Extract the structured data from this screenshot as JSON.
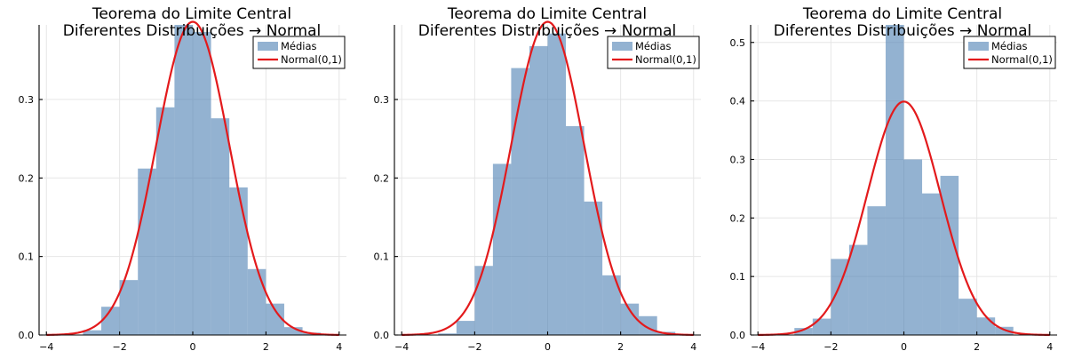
{
  "chart_data": [
    {
      "type": "bar",
      "title": [
        "Teorema do Limite Central",
        "Diferentes Distribuições → Normal"
      ],
      "xlabel": "",
      "ylabel": "",
      "xlim": [
        -4.2,
        4.2
      ],
      "ylim": [
        0,
        0.395
      ],
      "x_ticks": [
        -4,
        -2,
        0,
        2,
        4
      ],
      "x_tick_labels": [
        "−4",
        "−2",
        "0",
        "2",
        "4"
      ],
      "y_ticks": [
        0.0,
        0.1,
        0.2,
        0.3
      ],
      "y_tick_labels": [
        "0.0",
        "0.1",
        "0.2",
        "0.3"
      ],
      "grid": true,
      "legend_position": "top-right",
      "legend": [
        "Médias",
        "Normal(0,1)"
      ],
      "bins": [
        {
          "x0": -3.0,
          "x1": -2.5,
          "y": 0.006
        },
        {
          "x0": -2.5,
          "x1": -2.0,
          "y": 0.036
        },
        {
          "x0": -2.0,
          "x1": -1.5,
          "y": 0.07
        },
        {
          "x0": -1.5,
          "x1": -1.0,
          "y": 0.212
        },
        {
          "x0": -1.0,
          "x1": -0.5,
          "y": 0.29
        },
        {
          "x0": -0.5,
          "x1": 0.0,
          "y": 0.398
        },
        {
          "x0": 0.0,
          "x1": 0.5,
          "y": 0.386
        },
        {
          "x0": 0.5,
          "x1": 1.0,
          "y": 0.276
        },
        {
          "x0": 1.0,
          "x1": 1.5,
          "y": 0.188
        },
        {
          "x0": 1.5,
          "x1": 2.0,
          "y": 0.084
        },
        {
          "x0": 2.0,
          "x1": 2.5,
          "y": 0.04
        },
        {
          "x0": 2.5,
          "x1": 3.0,
          "y": 0.01
        },
        {
          "x0": 3.0,
          "x1": 3.5,
          "y": 0.003
        }
      ],
      "series": [
        {
          "name": "Médias",
          "kind": "histogram",
          "color": "#4b7fb3"
        },
        {
          "name": "Normal(0,1)",
          "kind": "line",
          "color": "#e31a1c",
          "mean": 0,
          "sd": 1
        }
      ]
    },
    {
      "type": "bar",
      "title": [
        "Teorema do Limite Central",
        "Diferentes Distribuições → Normal"
      ],
      "xlabel": "",
      "ylabel": "",
      "xlim": [
        -4.2,
        4.2
      ],
      "ylim": [
        0,
        0.395
      ],
      "x_ticks": [
        -4,
        -2,
        0,
        2,
        4
      ],
      "x_tick_labels": [
        "−4",
        "−2",
        "0",
        "2",
        "4"
      ],
      "y_ticks": [
        0.0,
        0.1,
        0.2,
        0.3
      ],
      "y_tick_labels": [
        "0.0",
        "0.1",
        "0.2",
        "0.3"
      ],
      "grid": true,
      "legend_position": "top-right",
      "legend": [
        "Médias",
        "Normal(0,1)"
      ],
      "bins": [
        {
          "x0": -3.0,
          "x1": -2.5,
          "y": 0.002
        },
        {
          "x0": -2.5,
          "x1": -2.0,
          "y": 0.018
        },
        {
          "x0": -2.0,
          "x1": -1.5,
          "y": 0.088
        },
        {
          "x0": -1.5,
          "x1": -1.0,
          "y": 0.218
        },
        {
          "x0": -1.0,
          "x1": -0.5,
          "y": 0.34
        },
        {
          "x0": -0.5,
          "x1": 0.0,
          "y": 0.368
        },
        {
          "x0": 0.0,
          "x1": 0.5,
          "y": 0.384
        },
        {
          "x0": 0.5,
          "x1": 1.0,
          "y": 0.266
        },
        {
          "x0": 1.0,
          "x1": 1.5,
          "y": 0.17
        },
        {
          "x0": 1.5,
          "x1": 2.0,
          "y": 0.076
        },
        {
          "x0": 2.0,
          "x1": 2.5,
          "y": 0.04
        },
        {
          "x0": 2.5,
          "x1": 3.0,
          "y": 0.024
        },
        {
          "x0": 3.0,
          "x1": 3.5,
          "y": 0.004
        }
      ],
      "series": [
        {
          "name": "Médias",
          "kind": "histogram",
          "color": "#4b7fb3"
        },
        {
          "name": "Normal(0,1)",
          "kind": "line",
          "color": "#e31a1c",
          "mean": 0,
          "sd": 1
        }
      ]
    },
    {
      "type": "bar",
      "title": [
        "Teorema do Limite Central",
        "Diferentes Distribuições → Normal"
      ],
      "xlabel": "",
      "ylabel": "",
      "xlim": [
        -4.2,
        4.2
      ],
      "ylim": [
        0,
        0.53
      ],
      "x_ticks": [
        -4,
        -2,
        0,
        2,
        4
      ],
      "x_tick_labels": [
        "−4",
        "−2",
        "0",
        "2",
        "4"
      ],
      "y_ticks": [
        0.0,
        0.1,
        0.2,
        0.3,
        0.4,
        0.5
      ],
      "y_tick_labels": [
        "0.0",
        "0.1",
        "0.2",
        "0.3",
        "0.4",
        "0.5"
      ],
      "grid": true,
      "legend_position": "top-right",
      "legend": [
        "Médias",
        "Normal(0,1)"
      ],
      "bins": [
        {
          "x0": -3.0,
          "x1": -2.5,
          "y": 0.012
        },
        {
          "x0": -2.5,
          "x1": -2.0,
          "y": 0.028
        },
        {
          "x0": -2.0,
          "x1": -1.5,
          "y": 0.13
        },
        {
          "x0": -1.5,
          "x1": -1.0,
          "y": 0.154
        },
        {
          "x0": -1.0,
          "x1": -0.5,
          "y": 0.22
        },
        {
          "x0": -0.5,
          "x1": 0.0,
          "y": 0.53
        },
        {
          "x0": 0.0,
          "x1": 0.5,
          "y": 0.3
        },
        {
          "x0": 0.5,
          "x1": 1.0,
          "y": 0.242
        },
        {
          "x0": 1.0,
          "x1": 1.5,
          "y": 0.272
        },
        {
          "x0": 1.5,
          "x1": 2.0,
          "y": 0.062
        },
        {
          "x0": 2.0,
          "x1": 2.5,
          "y": 0.03
        },
        {
          "x0": 2.5,
          "x1": 3.0,
          "y": 0.014
        }
      ],
      "series": [
        {
          "name": "Médias",
          "kind": "histogram",
          "color": "#4b7fb3"
        },
        {
          "name": "Normal(0,1)",
          "kind": "line",
          "color": "#e31a1c",
          "mean": 0,
          "sd": 1
        }
      ]
    }
  ]
}
